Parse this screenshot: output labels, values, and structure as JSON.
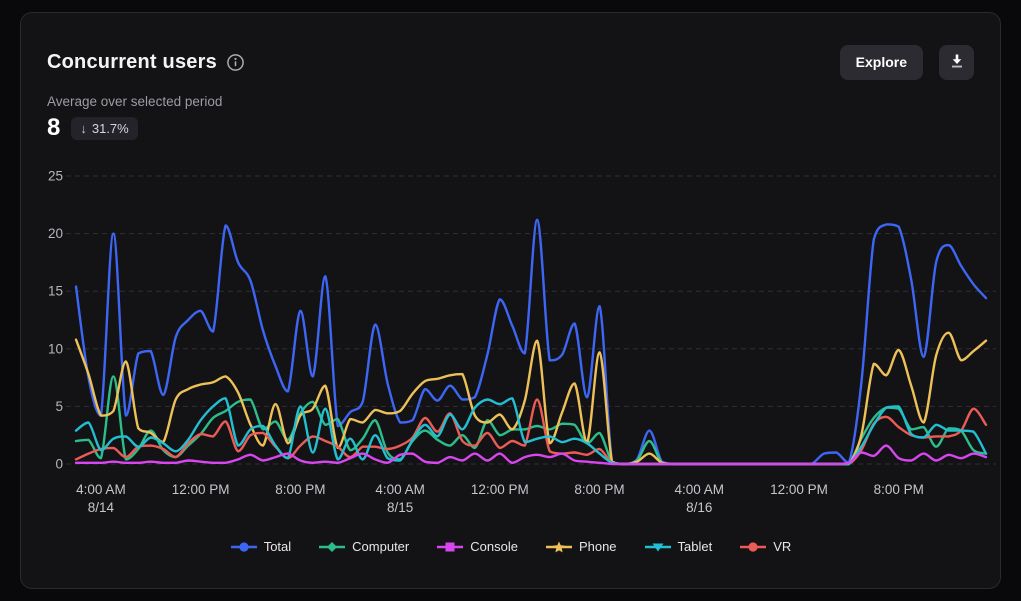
{
  "card": {
    "title": "Concurrent users",
    "header_actions": {
      "explore_label": "Explore",
      "download_icon": "download-tray-arrow"
    },
    "subtitle": "Average over selected period",
    "average_value": "8",
    "delta": {
      "direction": "down",
      "arrow": "↓",
      "value": "31.7%"
    }
  },
  "chart_data": {
    "type": "line",
    "title": "Concurrent users",
    "xlabel": "",
    "ylabel": "",
    "ylim": [
      0,
      25
    ],
    "y_ticks": [
      0,
      5,
      10,
      15,
      20,
      25
    ],
    "grid": "horizontal-dashed",
    "grid_color": "#47474e",
    "legend_position": "bottom",
    "x_span": "hourly samples, ~2:00 AM 8/14 through ~3:00 AM 8/17",
    "x_ticks": [
      {
        "label": "4:00 AM",
        "date": "8/14",
        "hour": 2
      },
      {
        "label": "12:00 PM",
        "date": "",
        "hour": 10
      },
      {
        "label": "8:00 PM",
        "date": "",
        "hour": 18
      },
      {
        "label": "4:00 AM",
        "date": "8/15",
        "hour": 26
      },
      {
        "label": "12:00 PM",
        "date": "",
        "hour": 34
      },
      {
        "label": "8:00 PM",
        "date": "",
        "hour": 42
      },
      {
        "label": "4:00 AM",
        "date": "8/16",
        "hour": 50
      },
      {
        "label": "12:00 PM",
        "date": "",
        "hour": 58
      },
      {
        "label": "8:00 PM",
        "date": "",
        "hour": 66
      }
    ],
    "series": [
      {
        "name": "Total",
        "color": "#3e66f5",
        "marker": "circle",
        "values": [
          15.4,
          7.5,
          4.2,
          20.0,
          4.2,
          9.6,
          9.8,
          6.0,
          11.0,
          12.5,
          13.3,
          11.5,
          20.7,
          17.5,
          15.9,
          11.6,
          8.5,
          6.3,
          13.3,
          7.6,
          16.3,
          3.3,
          4.5,
          5.4,
          12.1,
          7.0,
          3.6,
          3.8,
          6.5,
          5.5,
          6.8,
          5.6,
          5.8,
          9.5,
          14.3,
          12.0,
          9.6,
          21.2,
          9.0,
          9.5,
          12.2,
          5.8,
          13.7,
          0.2,
          0,
          0.4,
          2.9,
          0.2,
          0,
          0,
          0,
          0,
          0,
          0,
          0,
          0,
          0,
          0,
          0,
          0,
          0.9,
          1.0,
          0.1,
          7.0,
          19.5,
          20.8,
          20.6,
          16.0,
          9.3,
          17.5,
          19.0,
          17.2,
          15.6,
          14.4
        ]
      },
      {
        "name": "Computer",
        "color": "#2dbd8a",
        "marker": "diamond",
        "values": [
          2.0,
          2.1,
          0.5,
          7.6,
          0.4,
          1.3,
          2.9,
          1.2,
          0.6,
          1.6,
          2.6,
          4.0,
          4.6,
          5.4,
          5.6,
          3.0,
          3.7,
          2.1,
          4.4,
          5.4,
          3.4,
          3.9,
          1.2,
          2.2,
          3.8,
          1.0,
          0.4,
          2.0,
          2.9,
          2.1,
          1.6,
          2.5,
          1.4,
          3.8,
          2.5,
          3.0,
          3.0,
          3.3,
          3.0,
          3.5,
          3.4,
          1.8,
          2.7,
          0.2,
          0,
          0.3,
          2.0,
          0.1,
          0,
          0,
          0,
          0,
          0,
          0,
          0,
          0,
          0,
          0,
          0,
          0,
          0,
          0,
          0,
          2.2,
          4.0,
          4.9,
          4.8,
          3.0,
          3.2,
          1.5,
          3.1,
          2.9,
          1.2,
          0.9
        ]
      },
      {
        "name": "Console",
        "color": "#d946ef",
        "marker": "square",
        "values": [
          0.1,
          0.1,
          0.1,
          0.2,
          0.1,
          0.1,
          0.2,
          0.1,
          0.1,
          0.3,
          0.2,
          0.1,
          0.1,
          0.4,
          0.8,
          0.3,
          0.6,
          0.9,
          0.3,
          0.1,
          0.2,
          0.1,
          0.5,
          0.9,
          0.4,
          0.1,
          0.8,
          0.9,
          0.2,
          0.1,
          0.6,
          0.3,
          0.9,
          0.3,
          0.9,
          0.1,
          0.6,
          0.8,
          0.6,
          0.9,
          0.3,
          0.2,
          0.1,
          0,
          0,
          0,
          0,
          0,
          0,
          0,
          0,
          0,
          0,
          0,
          0,
          0,
          0,
          0,
          0,
          0,
          0,
          0,
          0.1,
          1.0,
          0.7,
          1.6,
          0.5,
          0.3,
          0.9,
          0.3,
          0.8,
          0.5,
          0.9,
          0.6
        ]
      },
      {
        "name": "Phone",
        "color": "#edc158",
        "marker": "star",
        "values": [
          10.8,
          7.8,
          4.2,
          4.6,
          8.9,
          3.1,
          2.7,
          1.9,
          5.6,
          6.5,
          6.9,
          7.1,
          7.6,
          6.2,
          3.4,
          1.6,
          5.2,
          1.8,
          4.2,
          4.8,
          6.8,
          1.4,
          3.9,
          3.6,
          4.7,
          4.4,
          4.6,
          6.1,
          7.2,
          7.4,
          7.7,
          7.8,
          4.2,
          3.6,
          4.3,
          3.0,
          5.5,
          10.7,
          1.8,
          4.5,
          7.0,
          1.9,
          9.7,
          0.2,
          0,
          0.2,
          0.9,
          0.1,
          0,
          0,
          0,
          0,
          0,
          0,
          0,
          0,
          0,
          0,
          0,
          0,
          0,
          0,
          0,
          2.5,
          8.7,
          7.7,
          9.9,
          6.8,
          3.6,
          9.4,
          11.4,
          9.0,
          9.8,
          10.7
        ]
      },
      {
        "name": "Tablet",
        "color": "#22bfd2",
        "marker": "triangle-down",
        "values": [
          2.9,
          3.6,
          1.2,
          2.2,
          2.4,
          1.5,
          2.3,
          1.8,
          1.1,
          2.1,
          3.8,
          5.0,
          5.7,
          1.6,
          3.0,
          3.3,
          1.6,
          0.5,
          5.0,
          1.0,
          4.8,
          0.4,
          2.2,
          0.4,
          2.5,
          0.5,
          0.3,
          2.1,
          3.4,
          2.4,
          4.3,
          3.0,
          4.9,
          5.6,
          5.2,
          5.7,
          1.9,
          2.2,
          2.4,
          1.9,
          2.2,
          1.8,
          0.9,
          0.1,
          0,
          0,
          0,
          0,
          0,
          0,
          0,
          0,
          0,
          0,
          0,
          0,
          0,
          0,
          0,
          0,
          0,
          0,
          0,
          1.5,
          3.4,
          4.9,
          5.0,
          2.6,
          2.3,
          3.4,
          2.9,
          2.9,
          2.8,
          0.9
        ]
      },
      {
        "name": "VR",
        "color": "#ec5b55",
        "marker": "circle",
        "values": [
          0.4,
          0.9,
          1.3,
          1.4,
          0.6,
          1.5,
          1.6,
          1.3,
          0.6,
          1.8,
          2.6,
          2.4,
          3.7,
          1.1,
          2.5,
          2.7,
          1.5,
          0.5,
          1.6,
          2.4,
          2.0,
          1.5,
          0.6,
          1.5,
          1.5,
          1.3,
          1.6,
          2.3,
          4.0,
          2.8,
          4.4,
          2.0,
          1.6,
          2.7,
          1.4,
          2.0,
          1.6,
          5.6,
          1.1,
          0.9,
          1.0,
          0.8,
          1.3,
          0.1,
          0,
          0,
          0,
          0,
          0,
          0,
          0,
          0,
          0,
          0,
          0,
          0,
          0,
          0,
          0,
          0,
          0,
          0,
          0,
          1.2,
          3.5,
          4.1,
          3.2,
          2.5,
          2.3,
          2.4,
          2.4,
          2.9,
          4.8,
          3.4
        ]
      }
    ]
  }
}
